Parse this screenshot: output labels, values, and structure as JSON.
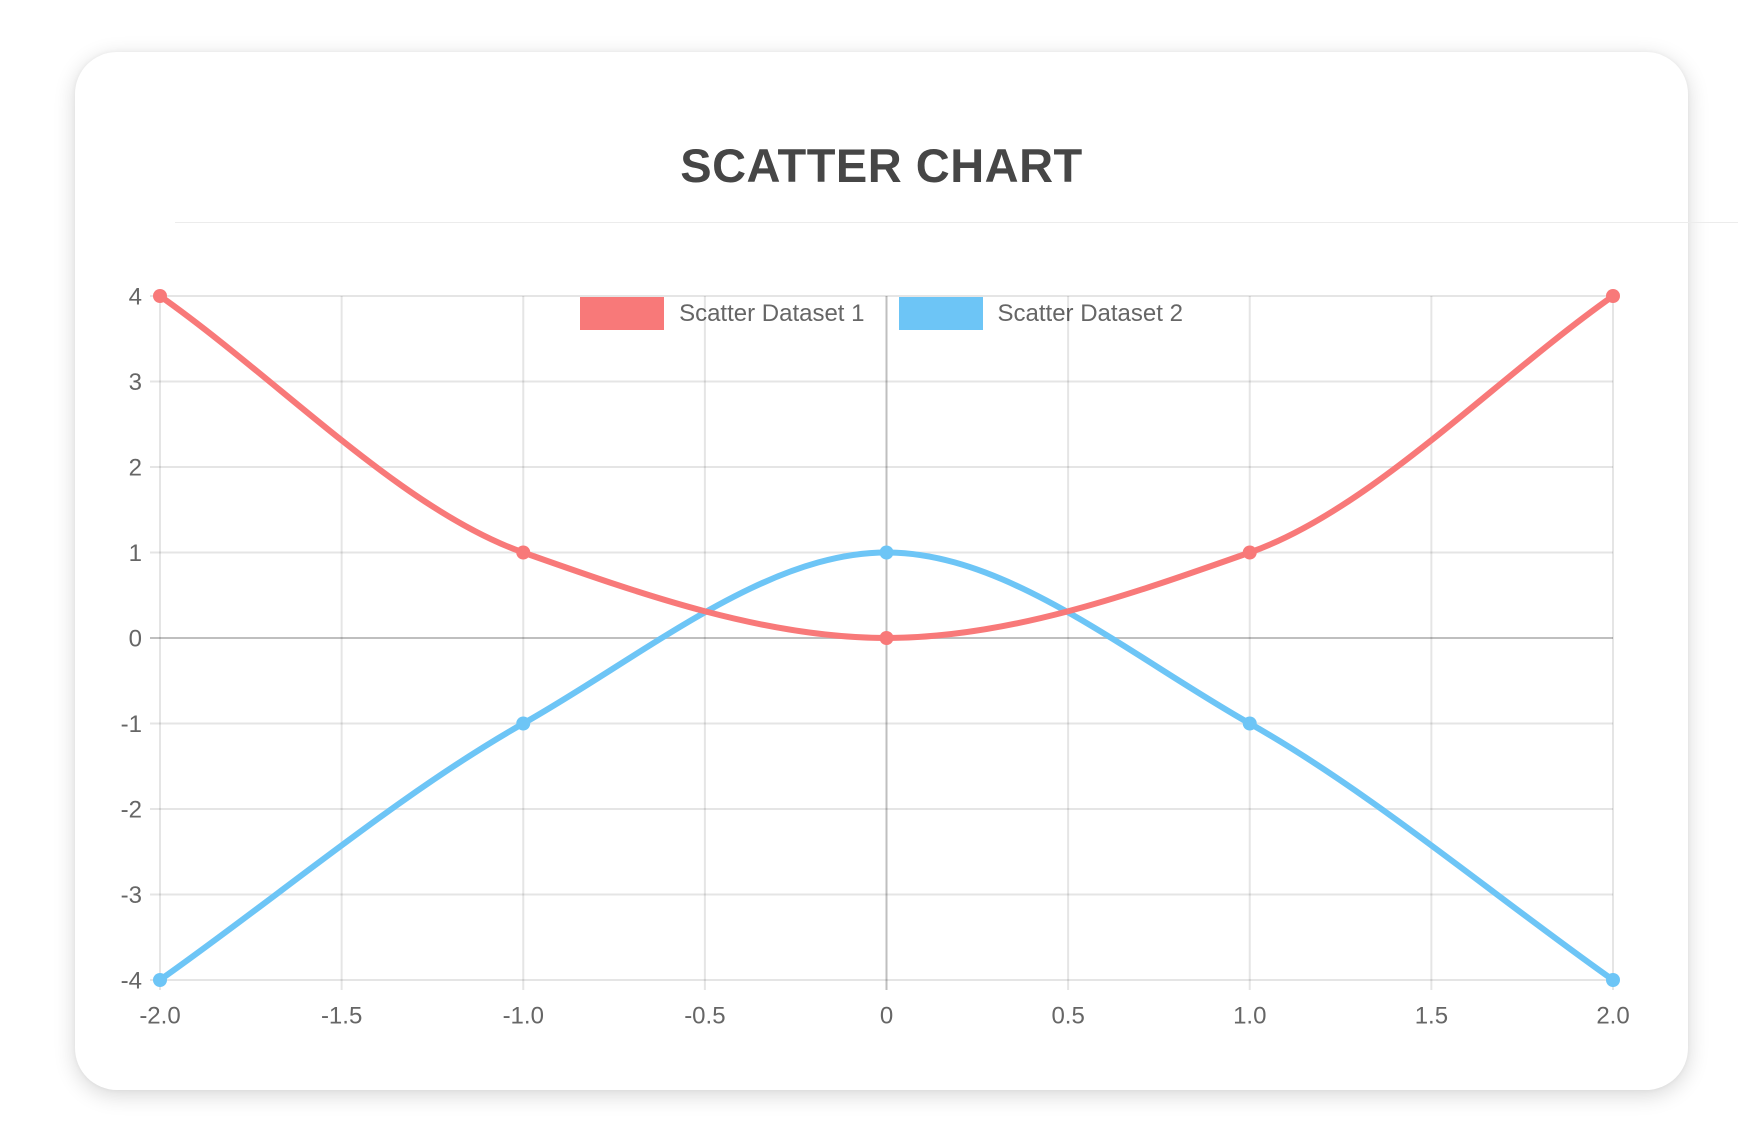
{
  "chart_data": {
    "type": "scatter",
    "title": "SCATTER CHART",
    "legend_position": "top",
    "grid": true,
    "curve": "monotone",
    "xlim": [
      -2,
      2
    ],
    "ylim": [
      -4,
      4
    ],
    "x_tick_values": [
      -2,
      -1.5,
      -1,
      -0.5,
      0,
      0.5,
      1,
      1.5,
      2
    ],
    "x_tick_labels": [
      "-2.0",
      "-1.5",
      "-1.0",
      "-0.5",
      "0",
      "0.5",
      "1.0",
      "1.5",
      "2.0"
    ],
    "y_tick_values": [
      4,
      3,
      2,
      1,
      0,
      -1,
      -2,
      -3,
      -4
    ],
    "y_tick_labels": [
      "4",
      "3",
      "2",
      "1",
      "0",
      "-1",
      "-2",
      "-3",
      "-4"
    ],
    "series": [
      {
        "name": "Scatter Dataset 1",
        "color": "#f87979",
        "points": [
          [
            -2,
            4
          ],
          [
            -1,
            1
          ],
          [
            0,
            0
          ],
          [
            1,
            1
          ],
          [
            2,
            4
          ]
        ]
      },
      {
        "name": "Scatter Dataset 2",
        "color": "#6dc5f6",
        "points": [
          [
            -2,
            -4
          ],
          [
            -1,
            -1
          ],
          [
            0,
            1
          ],
          [
            1,
            -1
          ],
          [
            2,
            -4
          ]
        ]
      }
    ]
  },
  "style": {
    "grid_color": "rgba(0,0,0,0.10)",
    "zero_line_color": "rgba(0,0,0,0.25)",
    "tick_text_color": "#666666",
    "title_color": "#464646",
    "legend_text_color": "#666666"
  }
}
